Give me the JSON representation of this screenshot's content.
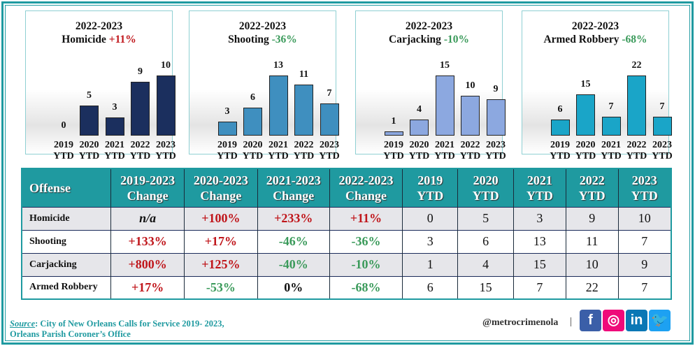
{
  "chart_data": [
    {
      "type": "bar",
      "title_line1": "2022-2023",
      "offense": "Homicide",
      "change": "+11%",
      "change_dir": "up",
      "categories": [
        "2019 YTD",
        "2020 YTD",
        "2021 YTD",
        "2022 YTD",
        "2023 YTD"
      ],
      "values": [
        0,
        5,
        3,
        9,
        10
      ],
      "color": "#1b2f5e"
    },
    {
      "type": "bar",
      "title_line1": "2022-2023",
      "offense": "Shooting",
      "change": "-36%",
      "change_dir": "down",
      "categories": [
        "2019 YTD",
        "2020 YTD",
        "2021 YTD",
        "2022 YTD",
        "2023 YTD"
      ],
      "values": [
        3,
        6,
        13,
        11,
        7
      ],
      "color": "#3f8fbf"
    },
    {
      "type": "bar",
      "title_line1": "2022-2023",
      "offense": "Carjacking",
      "change": "-10%",
      "change_dir": "down",
      "categories": [
        "2019 YTD",
        "2020 YTD",
        "2021 YTD",
        "2022 YTD",
        "2023 YTD"
      ],
      "values": [
        1,
        4,
        15,
        10,
        9
      ],
      "color": "#8ca8e0"
    },
    {
      "type": "bar",
      "title_line1": "2022-2023",
      "offense": "Armed Robbery",
      "change": "-68%",
      "change_dir": "down",
      "categories": [
        "2019 YTD",
        "2020 YTD",
        "2021 YTD",
        "2022 YTD",
        "2023 YTD"
      ],
      "values": [
        6,
        15,
        7,
        22,
        7
      ],
      "color": "#1aa5c8"
    }
  ],
  "table": {
    "headers": [
      [
        "Offense"
      ],
      [
        "2019-2023",
        "Change"
      ],
      [
        "2020-2023",
        "Change"
      ],
      [
        "2021-2023",
        "Change"
      ],
      [
        "2022-2023",
        "Change"
      ],
      [
        "2019",
        "YTD"
      ],
      [
        "2020",
        "YTD"
      ],
      [
        "2021",
        "YTD"
      ],
      [
        "2022",
        "YTD"
      ],
      [
        "2023",
        "YTD"
      ]
    ],
    "rows": [
      {
        "offense": "Homicide",
        "changes": [
          {
            "v": "n/a",
            "dir": "na"
          },
          {
            "v": "+100%",
            "dir": "up"
          },
          {
            "v": "+233%",
            "dir": "up"
          },
          {
            "v": "+11%",
            "dir": "up"
          }
        ],
        "ytd": [
          "0",
          "5",
          "3",
          "9",
          "10"
        ]
      },
      {
        "offense": "Shooting",
        "changes": [
          {
            "v": "+133%",
            "dir": "up"
          },
          {
            "v": "+17%",
            "dir": "up"
          },
          {
            "v": "-46%",
            "dir": "down"
          },
          {
            "v": "-36%",
            "dir": "down"
          }
        ],
        "ytd": [
          "3",
          "6",
          "13",
          "11",
          "7"
        ]
      },
      {
        "offense": "Carjacking",
        "changes": [
          {
            "v": "+800%",
            "dir": "up"
          },
          {
            "v": "+125%",
            "dir": "up"
          },
          {
            "v": "-40%",
            "dir": "down"
          },
          {
            "v": "-10%",
            "dir": "down"
          }
        ],
        "ytd": [
          "1",
          "4",
          "15",
          "10",
          "9"
        ]
      },
      {
        "offense": "Armed Robbery",
        "changes": [
          {
            "v": "+17%",
            "dir": "up"
          },
          {
            "v": "-53%",
            "dir": "down"
          },
          {
            "v": "0%",
            "dir": "flat"
          },
          {
            "v": "-68%",
            "dir": "down"
          }
        ],
        "ytd": [
          "6",
          "15",
          "7",
          "22",
          "7"
        ]
      }
    ]
  },
  "colors": {
    "up": "#c0161b",
    "down": "#3a9a5a",
    "header": "#1f9aa0"
  },
  "footer": {
    "source_label": "Source",
    "source_line1": ": City of New Orleans Calls for Service 2019- 2023,",
    "source_line2": "Orleans Parish Coroner’s Office",
    "handle": "@metrocrimenola",
    "separator": "|",
    "social": [
      {
        "icon": "facebook-icon",
        "glyph": "f",
        "color": "#3b5fa8"
      },
      {
        "icon": "instagram-icon",
        "glyph": "◎",
        "color": "#ef0a7a"
      },
      {
        "icon": "linkedin-icon",
        "glyph": "in",
        "color": "#0a77b5"
      },
      {
        "icon": "twitter-icon",
        "glyph": "🐦",
        "color": "#1da1f2"
      }
    ]
  }
}
